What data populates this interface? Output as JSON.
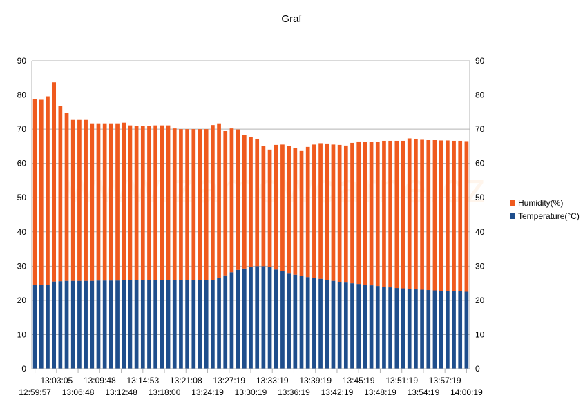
{
  "watermark": "www.zamowcarne.cz",
  "chart_data": {
    "type": "bar",
    "stacked": true,
    "title": "Graf",
    "xlabel": "",
    "ylabel": "",
    "ylim": [
      0,
      90
    ],
    "yticks": [
      0,
      10,
      20,
      30,
      40,
      50,
      60,
      70,
      80,
      90
    ],
    "secondary_axis": true,
    "grid": true,
    "legend_position": "right",
    "colors": {
      "Temperature(°C)": "#1f4e8c",
      "Humidity(%)": "#ef5a1e"
    },
    "x_tick_labels_row1": [
      "13:03:05",
      "13:09:48",
      "13:14:53",
      "13:21:08",
      "13:27:19",
      "13:33:19",
      "13:39:19",
      "13:45:19",
      "13:51:19",
      "13:57:19"
    ],
    "x_tick_labels_row2": [
      "12:59:57",
      "13:06:48",
      "13:12:48",
      "13:18:00",
      "13:24:19",
      "13:30:19",
      "13:36:19",
      "13:42:19",
      "13:48:19",
      "13:54:19",
      "14:00:19"
    ],
    "series": [
      {
        "name": "Temperature(°C)",
        "values": [
          24.5,
          24.6,
          24.6,
          25.5,
          25.6,
          25.7,
          25.7,
          25.7,
          25.7,
          25.7,
          25.8,
          25.8,
          25.8,
          25.8,
          25.9,
          25.9,
          25.9,
          25.9,
          25.9,
          26.0,
          26.0,
          26.0,
          26.0,
          26.0,
          26.0,
          26.0,
          26.0,
          26.0,
          26.0,
          26.5,
          27.3,
          28.2,
          28.9,
          29.3,
          29.7,
          30.0,
          30.0,
          29.8,
          29.0,
          28.5,
          27.8,
          27.5,
          27.2,
          26.8,
          26.5,
          26.3,
          26.0,
          25.7,
          25.4,
          25.2,
          25.0,
          24.8,
          24.6,
          24.4,
          24.2,
          24.0,
          23.8,
          23.6,
          23.5,
          23.4,
          23.2,
          23.1,
          23.0,
          22.9,
          22.8,
          22.7,
          22.6,
          22.6,
          22.5
        ]
      },
      {
        "name": "Humidity(%)",
        "values": [
          54.2,
          54.0,
          55.0,
          58.2,
          51.2,
          49.0,
          47.0,
          47.0,
          47.0,
          46.0,
          45.9,
          45.9,
          45.9,
          45.9,
          46.0,
          45.2,
          45.1,
          45.1,
          45.1,
          45.1,
          45.1,
          45.1,
          44.2,
          44.0,
          44.0,
          44.0,
          44.0,
          44.0,
          45.2,
          45.2,
          42.2,
          42.0,
          41.0,
          39.1,
          38.1,
          37.2,
          35.0,
          34.2,
          36.4,
          37.0,
          37.2,
          37.0,
          36.6,
          38.0,
          39.0,
          39.6,
          39.8,
          39.8,
          40.0,
          40.0,
          41.0,
          41.6,
          41.6,
          41.8,
          42.1,
          42.6,
          42.8,
          43.0,
          43.1,
          43.9,
          44.0,
          44.0,
          43.9,
          43.9,
          43.9,
          44.0,
          44.0,
          44.0,
          44.0
        ]
      }
    ]
  }
}
